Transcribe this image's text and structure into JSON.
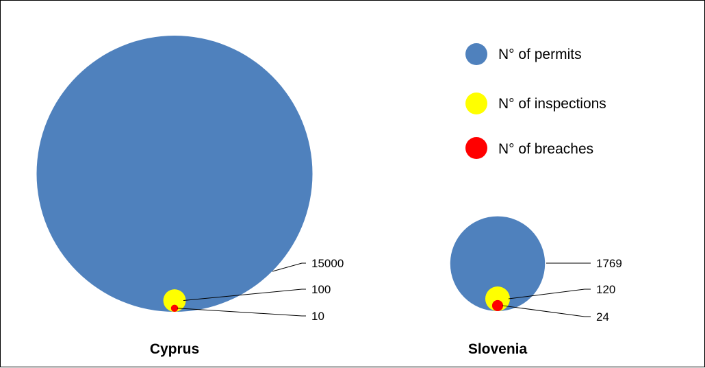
{
  "chart_data": {
    "type": "bubble",
    "title": "",
    "legend": {
      "placement": "top-right",
      "entries": [
        {
          "key": "permits",
          "label": "N° of permits",
          "color": "#4f81bd"
        },
        {
          "key": "inspections",
          "label": "N° of inspections",
          "color": "#ffff00"
        },
        {
          "key": "breaches",
          "label": "N° of breaches",
          "color": "#ff0000"
        }
      ]
    },
    "countries": [
      {
        "name": "Cyprus",
        "permits": 15000,
        "inspections": 100,
        "breaches": 10
      },
      {
        "name": "Slovenia",
        "permits": 1769,
        "inspections": 120,
        "breaches": 24
      }
    ]
  }
}
